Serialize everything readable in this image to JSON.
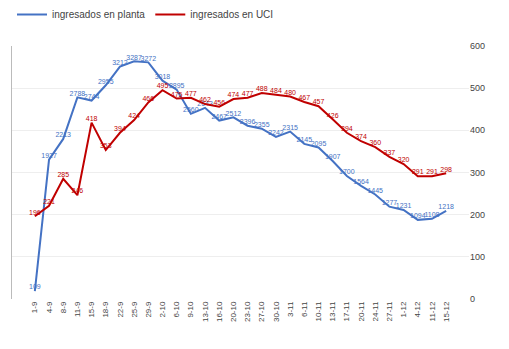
{
  "chart_data": {
    "type": "line",
    "categories": [
      "1-9",
      "4-9",
      "8-9",
      "11-9",
      "15-9",
      "18-9",
      "22-9",
      "25-9",
      "29-9",
      "2-10",
      "6-10",
      "9-10",
      "13-10",
      "16-10",
      "20-10",
      "23-10",
      "27-10",
      "30-10",
      "3-11",
      "6-11",
      "10-11",
      "13-11",
      "17-11",
      "20-11",
      "24-11",
      "27-11",
      "1-12",
      "4-12",
      "11-12",
      "15-12"
    ],
    "series": [
      {
        "name": "ingresados en planta",
        "color": "#4472c4",
        "values": [
          109,
          1927,
          2213,
          2788,
          2744,
          2955,
          3212,
          3287,
          3272,
          3018,
          2895,
          2560,
          2643,
          2467,
          2512,
          2396,
          2355,
          2242,
          2315,
          2145,
          2095,
          1907,
          1700,
          1564,
          1445,
          1277,
          1231,
          1094,
          1108,
          1218
        ]
      },
      {
        "name": "ingresados en UCI",
        "color": "#c00000",
        "axis": "y2",
        "values": [
          196,
          221,
          285,
          246,
          418,
          353,
          394,
          424,
          466,
          495,
          475,
          477,
          462,
          456,
          474,
          477,
          488,
          484,
          480,
          467,
          457,
          426,
          394,
          374,
          360,
          337,
          320,
          291,
          291,
          298
        ]
      }
    ],
    "ylim": [
      0,
      3500
    ],
    "yticks": [],
    "y2lim": [
      0,
      600
    ],
    "y2ticks": [
      0,
      100,
      200,
      300,
      400,
      500,
      600
    ],
    "grid": true,
    "legend": "top left",
    "data_labels": true
  }
}
